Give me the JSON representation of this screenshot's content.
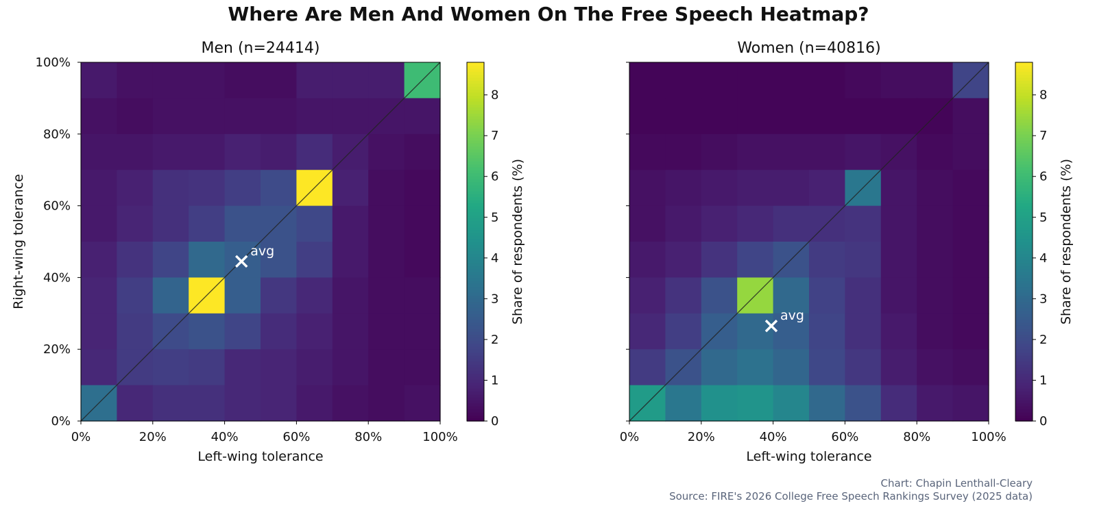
{
  "title": "Where Are Men And Women On The Free Speech Heatmap?",
  "credit": {
    "chart": "Chart: Chapin Lenthall-Cleary",
    "source": "Source: FIRE's 2026 College Free Speech Rankings Survey (2025 data)"
  },
  "colors": {
    "colormap": "viridis",
    "diagonal": "#222222",
    "marker": "#ffffff",
    "text": "#111111"
  },
  "chart_data": [
    {
      "type": "heatmap",
      "title": "Men (n=24414)",
      "xlabel": "Left-wing tolerance",
      "ylabel": "Right-wing tolerance",
      "xlim": [
        0,
        100
      ],
      "ylim": [
        0,
        100
      ],
      "x_ticks": [
        "0%",
        "20%",
        "40%",
        "60%",
        "80%",
        "100%"
      ],
      "y_ticks": [
        "0%",
        "20%",
        "40%",
        "60%",
        "80%",
        "100%"
      ],
      "colorbar": {
        "label": "Share of respondents (%)",
        "range": [
          0,
          8.8
        ],
        "ticks": [
          "0",
          "1",
          "2",
          "3",
          "4",
          "5",
          "6",
          "7",
          "8"
        ]
      },
      "diagonal": true,
      "avg": {
        "label": "avg",
        "x": 44.7,
        "y": 44.5
      },
      "grid_rows_top_to_bottom": [
        [
          0.6,
          0.4,
          0.4,
          0.4,
          0.3,
          0.3,
          0.7,
          0.7,
          0.7,
          6.0
        ],
        [
          0.4,
          0.3,
          0.4,
          0.4,
          0.4,
          0.4,
          0.5,
          0.5,
          0.5,
          0.5
        ],
        [
          0.5,
          0.5,
          0.6,
          0.6,
          0.8,
          0.7,
          1.1,
          0.7,
          0.4,
          0.3
        ],
        [
          0.6,
          0.8,
          1.2,
          1.3,
          1.6,
          2.0,
          8.8,
          0.8,
          0.3,
          0.2
        ],
        [
          0.6,
          0.9,
          1.2,
          1.6,
          2.2,
          2.2,
          1.9,
          0.6,
          0.3,
          0.2
        ],
        [
          0.8,
          1.3,
          1.8,
          3.0,
          2.6,
          2.2,
          1.6,
          0.6,
          0.3,
          0.2
        ],
        [
          0.9,
          1.6,
          2.8,
          8.8,
          2.6,
          1.4,
          1.0,
          0.5,
          0.3,
          0.3
        ],
        [
          0.9,
          1.5,
          2.0,
          2.2,
          1.8,
          1.1,
          0.8,
          0.5,
          0.3,
          0.3
        ],
        [
          1.0,
          1.5,
          1.6,
          1.5,
          1.0,
          0.9,
          0.7,
          0.5,
          0.3,
          0.3
        ],
        [
          3.2,
          1.0,
          1.2,
          1.2,
          1.0,
          0.9,
          0.6,
          0.4,
          0.3,
          0.4
        ]
      ]
    },
    {
      "type": "heatmap",
      "title": "Women (n=40816)",
      "xlabel": "Left-wing tolerance",
      "ylabel": "",
      "xlim": [
        0,
        100
      ],
      "ylim": [
        0,
        100
      ],
      "x_ticks": [
        "0%",
        "20%",
        "40%",
        "60%",
        "80%",
        "100%"
      ],
      "y_ticks": [],
      "colorbar": {
        "label": "Share of respondents (%)",
        "range": [
          0,
          8.8
        ],
        "ticks": [
          "0",
          "1",
          "2",
          "3",
          "4",
          "5",
          "6",
          "7",
          "8"
        ]
      },
      "diagonal": true,
      "avg": {
        "label": "avg",
        "x": 39.5,
        "y": 26.5
      },
      "grid_rows_top_to_bottom": [
        [
          0.1,
          0.1,
          0.1,
          0.1,
          0.1,
          0.1,
          0.2,
          0.3,
          0.3,
          1.8
        ],
        [
          0.1,
          0.1,
          0.1,
          0.1,
          0.1,
          0.1,
          0.1,
          0.1,
          0.1,
          0.3
        ],
        [
          0.2,
          0.2,
          0.3,
          0.4,
          0.4,
          0.4,
          0.5,
          0.4,
          0.2,
          0.3
        ],
        [
          0.4,
          0.5,
          0.6,
          0.7,
          0.7,
          0.8,
          3.5,
          0.5,
          0.3,
          0.2
        ],
        [
          0.4,
          0.6,
          0.8,
          1.0,
          1.2,
          1.2,
          1.3,
          0.5,
          0.3,
          0.2
        ],
        [
          0.6,
          0.8,
          1.3,
          1.8,
          2.2,
          1.5,
          1.4,
          0.5,
          0.3,
          0.2
        ],
        [
          0.8,
          1.3,
          2.2,
          7.4,
          3.0,
          1.7,
          1.2,
          0.5,
          0.3,
          0.2
        ],
        [
          1.0,
          1.6,
          2.6,
          3.0,
          2.6,
          1.8,
          1.2,
          0.6,
          0.3,
          0.2
        ],
        [
          1.5,
          2.2,
          3.0,
          3.3,
          2.9,
          1.9,
          1.4,
          0.7,
          0.4,
          0.3
        ],
        [
          4.8,
          3.5,
          4.4,
          4.5,
          4.0,
          3.0,
          2.2,
          1.1,
          0.6,
          0.5
        ]
      ]
    }
  ]
}
